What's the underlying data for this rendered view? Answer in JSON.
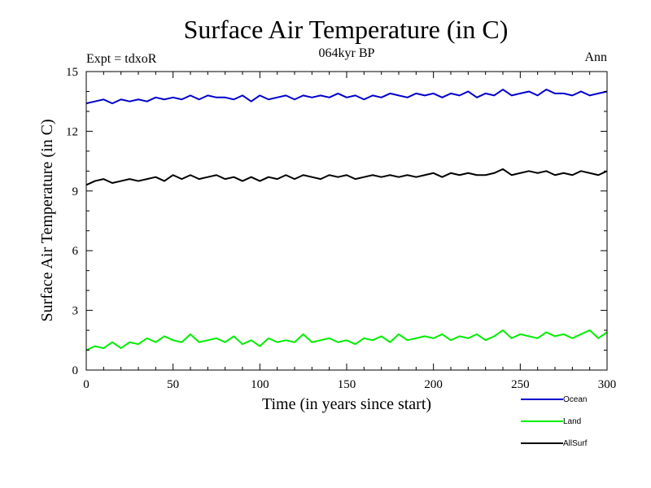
{
  "chart_data": {
    "type": "line",
    "title": "Surface Air Temperature (in C)",
    "subtitle": "064kyr BP",
    "left_note": "Expt = tdxoR",
    "right_note": "Ann",
    "xlabel": "Time (in years since start)",
    "ylabel": "Surface Air Temperature (in C)",
    "xlim": [
      0,
      300
    ],
    "ylim": [
      0,
      15
    ],
    "xticks": [
      0,
      50,
      100,
      150,
      200,
      250,
      300
    ],
    "yticks": [
      0,
      3,
      6,
      9,
      12,
      15
    ],
    "grid": false,
    "legend_position": "bottom-right",
    "series": [
      {
        "name": "Ocean",
        "color": "#0000cc",
        "x": [
          0,
          5,
          10,
          15,
          20,
          25,
          30,
          35,
          40,
          45,
          50,
          55,
          60,
          65,
          70,
          75,
          80,
          85,
          90,
          95,
          100,
          105,
          110,
          115,
          120,
          125,
          130,
          135,
          140,
          145,
          150,
          155,
          160,
          165,
          170,
          175,
          180,
          185,
          190,
          195,
          200,
          205,
          210,
          215,
          220,
          225,
          230,
          235,
          240,
          245,
          250,
          255,
          260,
          265,
          270,
          275,
          280,
          285,
          290,
          295,
          300
        ],
        "values": [
          13.4,
          13.5,
          13.6,
          13.4,
          13.6,
          13.5,
          13.6,
          13.5,
          13.7,
          13.6,
          13.7,
          13.6,
          13.8,
          13.6,
          13.8,
          13.7,
          13.7,
          13.6,
          13.8,
          13.5,
          13.8,
          13.6,
          13.7,
          13.8,
          13.6,
          13.8,
          13.7,
          13.8,
          13.7,
          13.9,
          13.7,
          13.8,
          13.6,
          13.8,
          13.7,
          13.9,
          13.8,
          13.7,
          13.9,
          13.8,
          13.9,
          13.7,
          13.9,
          13.8,
          14.0,
          13.7,
          13.9,
          13.8,
          14.1,
          13.8,
          13.9,
          14.0,
          13.8,
          14.1,
          13.9,
          13.9,
          13.8,
          14.0,
          13.8,
          13.9,
          14.0
        ]
      },
      {
        "name": "Land",
        "color": "#00ee00",
        "x": [
          0,
          5,
          10,
          15,
          20,
          25,
          30,
          35,
          40,
          45,
          50,
          55,
          60,
          65,
          70,
          75,
          80,
          85,
          90,
          95,
          100,
          105,
          110,
          115,
          120,
          125,
          130,
          135,
          140,
          145,
          150,
          155,
          160,
          165,
          170,
          175,
          180,
          185,
          190,
          195,
          200,
          205,
          210,
          215,
          220,
          225,
          230,
          235,
          240,
          245,
          250,
          255,
          260,
          265,
          270,
          275,
          280,
          285,
          290,
          295,
          300
        ],
        "values": [
          1.0,
          1.2,
          1.1,
          1.4,
          1.1,
          1.4,
          1.3,
          1.6,
          1.4,
          1.7,
          1.5,
          1.4,
          1.8,
          1.4,
          1.5,
          1.6,
          1.4,
          1.7,
          1.3,
          1.5,
          1.2,
          1.6,
          1.4,
          1.5,
          1.4,
          1.8,
          1.4,
          1.5,
          1.6,
          1.4,
          1.5,
          1.3,
          1.6,
          1.5,
          1.7,
          1.4,
          1.8,
          1.5,
          1.6,
          1.7,
          1.6,
          1.8,
          1.5,
          1.7,
          1.6,
          1.8,
          1.5,
          1.7,
          2.0,
          1.6,
          1.8,
          1.7,
          1.6,
          1.9,
          1.7,
          1.8,
          1.6,
          1.8,
          2.0,
          1.6,
          1.9
        ]
      },
      {
        "name": "AllSurf",
        "color": "#000000",
        "x": [
          0,
          5,
          10,
          15,
          20,
          25,
          30,
          35,
          40,
          45,
          50,
          55,
          60,
          65,
          70,
          75,
          80,
          85,
          90,
          95,
          100,
          105,
          110,
          115,
          120,
          125,
          130,
          135,
          140,
          145,
          150,
          155,
          160,
          165,
          170,
          175,
          180,
          185,
          190,
          195,
          200,
          205,
          210,
          215,
          220,
          225,
          230,
          235,
          240,
          245,
          250,
          255,
          260,
          265,
          270,
          275,
          280,
          285,
          290,
          295,
          300
        ],
        "values": [
          9.3,
          9.5,
          9.6,
          9.4,
          9.5,
          9.6,
          9.5,
          9.6,
          9.7,
          9.5,
          9.8,
          9.6,
          9.8,
          9.6,
          9.7,
          9.8,
          9.6,
          9.7,
          9.5,
          9.7,
          9.5,
          9.7,
          9.6,
          9.8,
          9.6,
          9.8,
          9.7,
          9.6,
          9.8,
          9.7,
          9.8,
          9.6,
          9.7,
          9.8,
          9.7,
          9.8,
          9.7,
          9.8,
          9.7,
          9.8,
          9.9,
          9.7,
          9.9,
          9.8,
          9.9,
          9.8,
          9.8,
          9.9,
          10.1,
          9.8,
          9.9,
          10.0,
          9.9,
          10.0,
          9.8,
          9.9,
          9.8,
          10.0,
          9.9,
          9.8,
          10.0
        ]
      }
    ]
  }
}
